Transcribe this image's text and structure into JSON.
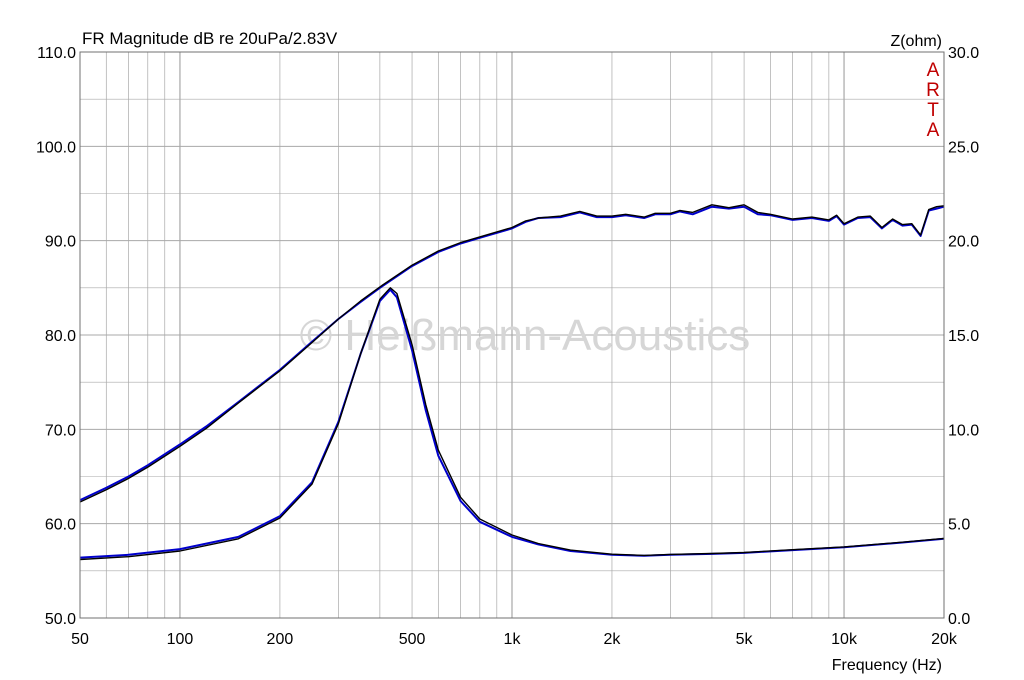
{
  "colors": {
    "grid": "#a8a8a8",
    "arta": "#c00000",
    "watermark": "#d6d6d6"
  },
  "chart_data": {
    "type": "line",
    "title": "FR Magnitude dB re 20uPa/2.83V",
    "xlabel": "Frequency (Hz)",
    "ylabel_right": "Z(ohm)",
    "x_scale": "log",
    "xlim": [
      50,
      20000
    ],
    "ylim": [
      50,
      110
    ],
    "ylim_right": [
      0,
      30
    ],
    "x_ticks": [
      50,
      100,
      200,
      500,
      1000,
      2000,
      5000,
      10000,
      20000
    ],
    "x_tick_labels": [
      "50",
      "100",
      "200",
      "500",
      "1k",
      "2k",
      "5k",
      "10k",
      "20k"
    ],
    "y_tick_labels": [
      "50.0",
      "60.0",
      "70.0",
      "80.0",
      "90.0",
      "100.0",
      "110.0"
    ],
    "y_right_tick_labels": [
      "0.0",
      "5.0",
      "10.0",
      "15.0",
      "20.0",
      "25.0",
      "30.0"
    ],
    "grid": true,
    "branding": {
      "text": "ARTA",
      "color": "#c00000"
    },
    "watermark": "© Heißmann-Acoustics",
    "series": [
      {
        "color": "#0000cc",
        "axis": "left",
        "points": [
          [
            50,
            62.5
          ],
          [
            60,
            63.8
          ],
          [
            70,
            65.0
          ],
          [
            80,
            66.2
          ],
          [
            100,
            68.4
          ],
          [
            120,
            70.3
          ],
          [
            150,
            72.9
          ],
          [
            200,
            76.3
          ],
          [
            250,
            79.3
          ],
          [
            300,
            81.7
          ],
          [
            350,
            83.5
          ],
          [
            400,
            85.0
          ],
          [
            500,
            87.3
          ],
          [
            600,
            88.8
          ],
          [
            700,
            89.7
          ],
          [
            800,
            90.3
          ],
          [
            1000,
            91.3
          ],
          [
            1100,
            92.0
          ],
          [
            1200,
            92.4
          ],
          [
            1400,
            92.5
          ],
          [
            1600,
            93.0
          ],
          [
            1800,
            92.5
          ],
          [
            2000,
            92.5
          ],
          [
            2200,
            92.7
          ],
          [
            2500,
            92.4
          ],
          [
            2700,
            92.8
          ],
          [
            3000,
            92.8
          ],
          [
            3200,
            93.1
          ],
          [
            3500,
            92.8
          ],
          [
            4000,
            93.6
          ],
          [
            4500,
            93.4
          ],
          [
            5000,
            93.6
          ],
          [
            5500,
            92.8
          ],
          [
            6000,
            92.7
          ],
          [
            7000,
            92.2
          ],
          [
            8000,
            92.4
          ],
          [
            9000,
            92.1
          ],
          [
            9500,
            92.6
          ],
          [
            10000,
            91.7
          ],
          [
            11000,
            92.4
          ],
          [
            12000,
            92.5
          ],
          [
            13000,
            91.3
          ],
          [
            14000,
            92.2
          ],
          [
            15000,
            91.6
          ],
          [
            16000,
            91.7
          ],
          [
            17000,
            90.5
          ],
          [
            18000,
            93.2
          ],
          [
            19000,
            93.4
          ],
          [
            20000,
            93.6
          ]
        ]
      },
      {
        "color": "#000000",
        "axis": "left",
        "points": [
          [
            50,
            62.3
          ],
          [
            60,
            63.6
          ],
          [
            70,
            64.8
          ],
          [
            80,
            66.0
          ],
          [
            100,
            68.2
          ],
          [
            120,
            70.1
          ],
          [
            150,
            72.8
          ],
          [
            200,
            76.2
          ],
          [
            250,
            79.2
          ],
          [
            300,
            81.7
          ],
          [
            350,
            83.6
          ],
          [
            400,
            85.1
          ],
          [
            500,
            87.4
          ],
          [
            600,
            88.9
          ],
          [
            700,
            89.8
          ],
          [
            800,
            90.4
          ],
          [
            1000,
            91.4
          ],
          [
            1100,
            92.1
          ],
          [
            1200,
            92.4
          ],
          [
            1400,
            92.6
          ],
          [
            1600,
            93.1
          ],
          [
            1800,
            92.6
          ],
          [
            2000,
            92.6
          ],
          [
            2200,
            92.8
          ],
          [
            2500,
            92.5
          ],
          [
            2700,
            92.9
          ],
          [
            3000,
            92.9
          ],
          [
            3200,
            93.2
          ],
          [
            3500,
            93.0
          ],
          [
            4000,
            93.8
          ],
          [
            4500,
            93.5
          ],
          [
            5000,
            93.8
          ],
          [
            5500,
            93.0
          ],
          [
            6000,
            92.8
          ],
          [
            7000,
            92.3
          ],
          [
            8000,
            92.5
          ],
          [
            9000,
            92.2
          ],
          [
            9500,
            92.7
          ],
          [
            10000,
            91.8
          ],
          [
            11000,
            92.5
          ],
          [
            12000,
            92.6
          ],
          [
            13000,
            91.4
          ],
          [
            14000,
            92.3
          ],
          [
            15000,
            91.7
          ],
          [
            16000,
            91.8
          ],
          [
            17000,
            90.6
          ],
          [
            18000,
            93.3
          ],
          [
            19000,
            93.6
          ],
          [
            20000,
            93.7
          ]
        ]
      },
      {
        "color": "#0000cc",
        "axis": "right",
        "points": [
          [
            50,
            3.2
          ],
          [
            70,
            3.35
          ],
          [
            100,
            3.65
          ],
          [
            150,
            4.3
          ],
          [
            200,
            5.4
          ],
          [
            250,
            7.2
          ],
          [
            300,
            10.4
          ],
          [
            350,
            14.0
          ],
          [
            400,
            16.8
          ],
          [
            430,
            17.4
          ],
          [
            450,
            17.0
          ],
          [
            500,
            14.2
          ],
          [
            550,
            11.0
          ],
          [
            600,
            8.6
          ],
          [
            700,
            6.2
          ],
          [
            800,
            5.1
          ],
          [
            1000,
            4.3
          ],
          [
            1200,
            3.9
          ],
          [
            1500,
            3.55
          ],
          [
            2000,
            3.35
          ],
          [
            2500,
            3.3
          ],
          [
            3000,
            3.35
          ],
          [
            4000,
            3.4
          ],
          [
            5000,
            3.45
          ],
          [
            7000,
            3.6
          ],
          [
            10000,
            3.75
          ],
          [
            15000,
            4.0
          ],
          [
            20000,
            4.2
          ]
        ]
      },
      {
        "color": "#000000",
        "axis": "right",
        "points": [
          [
            50,
            3.1
          ],
          [
            70,
            3.25
          ],
          [
            100,
            3.55
          ],
          [
            150,
            4.2
          ],
          [
            200,
            5.3
          ],
          [
            250,
            7.1
          ],
          [
            300,
            10.3
          ],
          [
            350,
            14.0
          ],
          [
            400,
            16.9
          ],
          [
            430,
            17.5
          ],
          [
            450,
            17.2
          ],
          [
            500,
            14.5
          ],
          [
            550,
            11.3
          ],
          [
            600,
            8.9
          ],
          [
            700,
            6.4
          ],
          [
            800,
            5.25
          ],
          [
            1000,
            4.4
          ],
          [
            1200,
            3.95
          ],
          [
            1500,
            3.6
          ],
          [
            2000,
            3.38
          ],
          [
            2500,
            3.32
          ],
          [
            3000,
            3.37
          ],
          [
            4000,
            3.42
          ],
          [
            5000,
            3.47
          ],
          [
            7000,
            3.62
          ],
          [
            10000,
            3.77
          ],
          [
            15000,
            4.02
          ],
          [
            20000,
            4.22
          ]
        ]
      }
    ]
  }
}
